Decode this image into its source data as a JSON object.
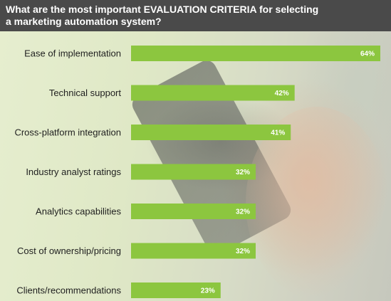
{
  "title": "What are the most important EVALUATION CRITERIA for selecting a marketing automation system?",
  "colors": {
    "bar": "#8cc63f",
    "header_bg": "#4a4a4a",
    "label_text": "#1f1f1f",
    "value_text": "#ffffff"
  },
  "chart_data": {
    "type": "bar",
    "orientation": "horizontal",
    "title": "What are the most important EVALUATION CRITERIA for selecting a marketing automation system?",
    "categories": [
      "Ease of implementation",
      "Technical support",
      "Cross-platform integration",
      "Industry analyst ratings",
      "Analytics capabilities",
      "Cost of ownership/pricing",
      "Clients/recommendations"
    ],
    "values": [
      64,
      42,
      41,
      32,
      32,
      32,
      23
    ],
    "value_labels": [
      "64%",
      "42%",
      "41%",
      "32%",
      "32%",
      "32%",
      "23%"
    ],
    "unit": "%",
    "xlim": [
      0,
      100
    ],
    "grid": false,
    "legend": "none"
  }
}
